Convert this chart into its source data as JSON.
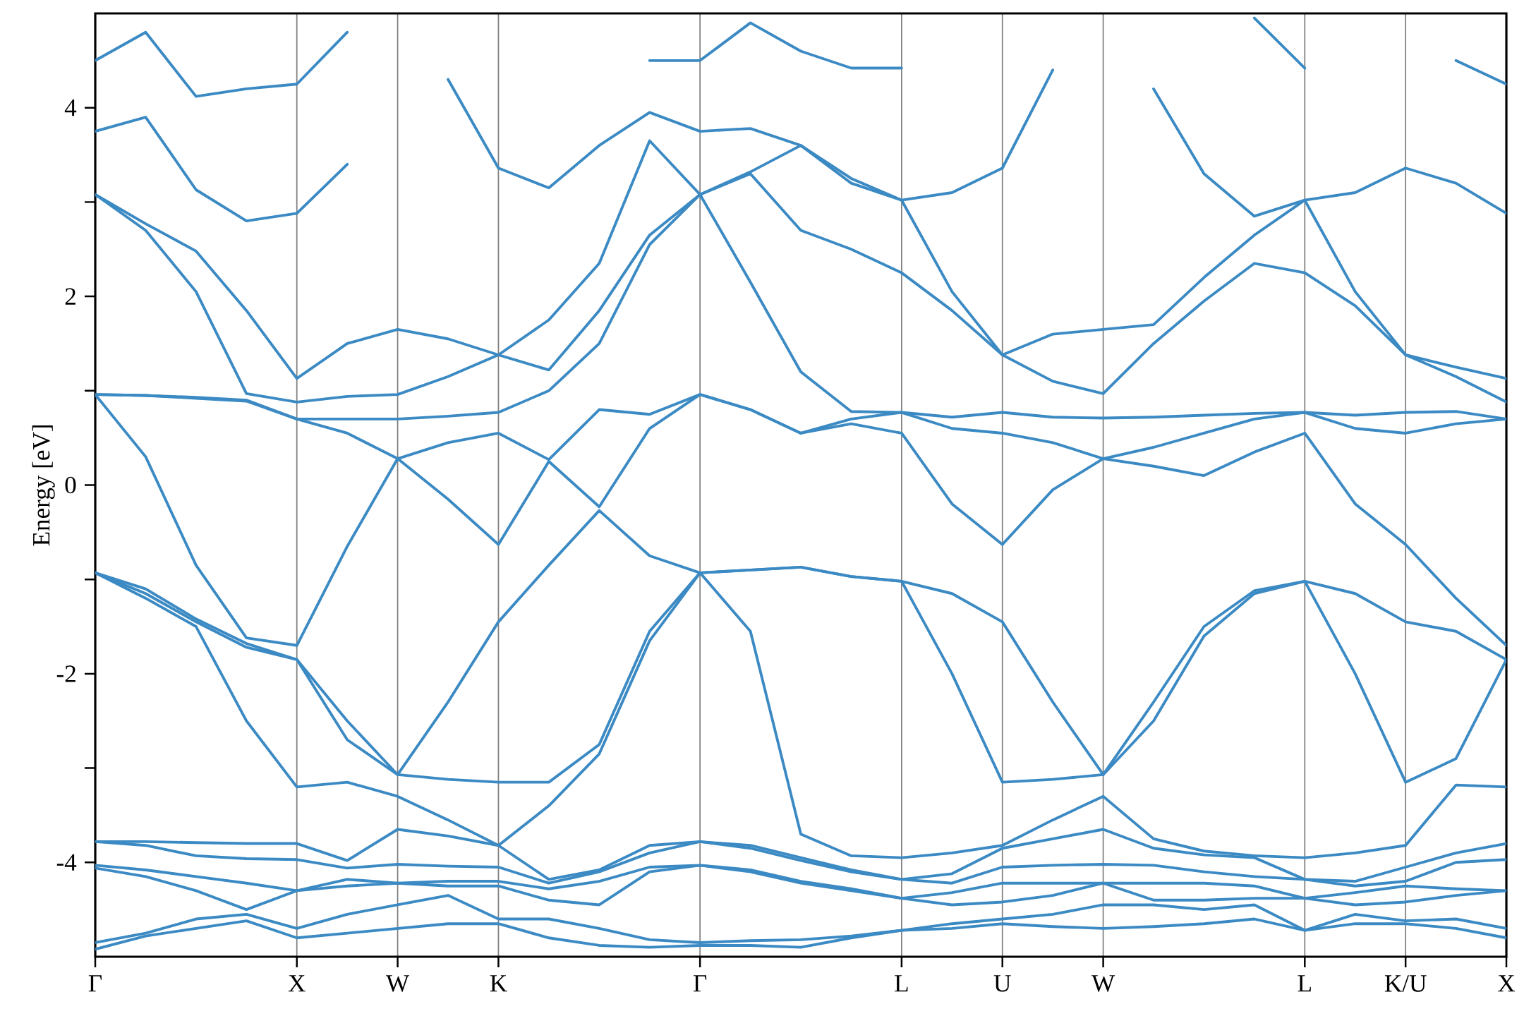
{
  "chart_data": {
    "type": "line",
    "ylabel": "Energy [eV]",
    "categories": [
      "Γ",
      null,
      null,
      null,
      "X",
      null,
      "W",
      null,
      "K",
      null,
      null,
      null,
      "Γ",
      null,
      null,
      null,
      "L",
      null,
      "U",
      null,
      "W",
      null,
      null,
      null,
      "L",
      null,
      "K/U",
      null,
      "X"
    ],
    "ylim": [
      -5,
      5
    ],
    "grid": "x",
    "yticks": [
      -4,
      {
        "value": -3,
        "label": null
      },
      -2,
      {
        "value": -1,
        "label": null
      },
      0,
      {
        "value": 1,
        "label": null
      },
      2,
      {
        "value": 3,
        "label": null
      },
      4
    ],
    "series": [
      {
        "color": "#3b8ac4",
        "values": [
          -4.92,
          -4.78,
          -4.7,
          -4.62,
          -4.8,
          -4.75,
          -4.7,
          -4.65,
          -4.65,
          -4.8,
          -4.88,
          -4.9,
          -4.88,
          -4.88,
          -4.9,
          -4.8,
          -4.72,
          -4.7,
          -4.65,
          -4.68,
          -4.7,
          -4.68,
          -4.65,
          -4.6,
          -4.72,
          -4.65,
          -4.65,
          -4.7,
          -4.8
        ]
      },
      {
        "color": "#3b8ac4",
        "values": [
          -4.85,
          -4.75,
          -4.6,
          -4.55,
          -4.7,
          -4.55,
          -4.45,
          -4.35,
          -4.6,
          -4.6,
          -4.7,
          -4.82,
          -4.85,
          -4.83,
          -4.82,
          -4.78,
          -4.72,
          -4.65,
          -4.6,
          -4.55,
          -4.45,
          -4.45,
          -4.5,
          -4.45,
          -4.72,
          -4.55,
          -4.62,
          -4.6,
          -4.7
        ]
      },
      {
        "color": "#3b8ac4",
        "values": [
          -4.06,
          -4.15,
          -4.3,
          -4.5,
          -4.3,
          -4.25,
          -4.22,
          -4.25,
          -4.25,
          -4.4,
          -4.45,
          -4.1,
          -4.03,
          -4.1,
          -4.22,
          -4.3,
          -4.38,
          -4.45,
          -4.42,
          -4.35,
          -4.22,
          -4.4,
          -4.4,
          -4.38,
          -4.38,
          -4.45,
          -4.42,
          -4.35,
          -4.3
        ]
      },
      {
        "color": "#3b8ac4",
        "values": [
          -4.03,
          -4.08,
          -4.15,
          -4.22,
          -4.3,
          -4.18,
          -4.22,
          -4.2,
          -4.2,
          -4.28,
          -4.2,
          -4.05,
          -4.03,
          -4.08,
          -4.2,
          -4.28,
          -4.38,
          -4.32,
          -4.22,
          -4.22,
          -4.22,
          -4.22,
          -4.22,
          -4.25,
          -4.38,
          -4.32,
          -4.25,
          -4.28,
          -4.3
        ]
      },
      {
        "color": "#3b8ac4",
        "values": [
          -3.78,
          -3.82,
          -3.93,
          -3.96,
          -3.97,
          -4.06,
          -4.02,
          -4.04,
          -4.05,
          -4.22,
          -4.1,
          -3.9,
          -3.78,
          -3.85,
          -3.98,
          -4.1,
          -4.18,
          -4.22,
          -4.05,
          -4.03,
          -4.02,
          -4.03,
          -4.1,
          -4.15,
          -4.18,
          -4.25,
          -4.2,
          -4.0,
          -3.97
        ]
      },
      {
        "color": "#3b8ac4",
        "values": [
          -3.78,
          -3.78,
          -3.79,
          -3.8,
          -3.8,
          -3.98,
          -3.65,
          -3.72,
          -3.82,
          -4.18,
          -4.08,
          -3.82,
          -3.78,
          -3.82,
          -3.95,
          -4.08,
          -4.18,
          -4.12,
          -3.85,
          -3.75,
          -3.65,
          -3.85,
          -3.92,
          -3.95,
          -4.18,
          -4.2,
          -4.05,
          -3.9,
          -3.8
        ]
      },
      {
        "color": "#3b8ac4",
        "values": [
          -0.93,
          -1.2,
          -1.5,
          -2.5,
          -3.2,
          -3.15,
          -3.3,
          -3.55,
          -3.82,
          -3.4,
          -2.85,
          -1.65,
          -0.93,
          -1.55,
          -3.7,
          -3.93,
          -3.95,
          -3.9,
          -3.82,
          -3.55,
          -3.3,
          -3.75,
          -3.88,
          -3.93,
          -3.95,
          -3.9,
          -3.82,
          -3.18,
          -3.2
        ]
      },
      {
        "color": "#3b8ac4",
        "values": [
          -0.93,
          -1.15,
          -1.45,
          -1.72,
          -1.85,
          -2.7,
          -3.07,
          -3.12,
          -3.15,
          -3.15,
          -2.75,
          -1.55,
          -0.93,
          -0.9,
          -0.87,
          -0.97,
          -1.02,
          -2.0,
          -3.15,
          -3.12,
          -3.07,
          -2.5,
          -1.6,
          -1.15,
          -1.02,
          -2.0,
          -3.15,
          -2.9,
          -1.85
        ]
      },
      {
        "color": "#3b8ac4",
        "values": [
          -0.93,
          -1.1,
          -1.42,
          -1.68,
          -1.85,
          -2.5,
          -3.07,
          -2.3,
          -1.45,
          -0.85,
          -0.27,
          -0.75,
          -0.93,
          -0.9,
          -0.87,
          -0.97,
          -1.02,
          -1.15,
          -1.45,
          -2.3,
          -3.07,
          -2.3,
          -1.5,
          -1.12,
          -1.02,
          -1.15,
          -1.45,
          -1.55,
          -1.85
        ]
      },
      {
        "color": "#3b8ac4",
        "values": [
          0.96,
          0.3,
          -0.85,
          -1.62,
          -1.7,
          -0.65,
          0.28,
          -0.15,
          -0.63,
          0.25,
          -0.23,
          0.6,
          0.96,
          0.8,
          0.55,
          0.65,
          0.55,
          -0.2,
          -0.63,
          -0.05,
          0.28,
          0.2,
          0.1,
          0.35,
          0.55,
          -0.2,
          -0.63,
          -1.2,
          -1.7
        ]
      },
      {
        "color": "#3b8ac4",
        "values": [
          0.96,
          0.95,
          0.93,
          0.9,
          0.7,
          0.55,
          0.28,
          0.45,
          0.55,
          0.27,
          0.8,
          0.75,
          0.96,
          0.8,
          0.55,
          0.7,
          0.77,
          0.6,
          0.55,
          0.45,
          0.28,
          0.4,
          0.55,
          0.7,
          0.77,
          0.6,
          0.55,
          0.65,
          0.7
        ]
      },
      {
        "color": "#3b8ac4",
        "values": [
          0.96,
          0.95,
          0.92,
          0.89,
          0.7,
          0.7,
          0.7,
          0.73,
          0.77,
          1.0,
          1.5,
          2.55,
          3.08,
          2.15,
          1.2,
          0.78,
          0.77,
          0.72,
          0.77,
          0.72,
          0.71,
          0.72,
          0.74,
          0.76,
          0.77,
          0.74,
          0.77,
          0.78,
          0.7
        ]
      },
      {
        "color": "#3b8ac4",
        "values": [
          3.08,
          2.7,
          2.05,
          0.97,
          0.88,
          0.94,
          0.96,
          1.15,
          1.38,
          1.22,
          1.85,
          2.65,
          3.08,
          3.3,
          2.7,
          2.5,
          2.25,
          1.85,
          1.38,
          1.1,
          0.97,
          1.5,
          1.95,
          2.35,
          2.25,
          1.9,
          1.38,
          1.15,
          0.88
        ]
      },
      {
        "color": "#3b8ac4",
        "values": [
          3.08,
          2.77,
          2.48,
          1.85,
          1.13,
          1.5,
          1.65,
          1.55,
          1.38,
          1.75,
          2.35,
          3.65,
          3.08,
          3.32,
          3.6,
          3.2,
          3.02,
          2.05,
          1.38,
          1.6,
          1.65,
          1.7,
          2.2,
          2.65,
          3.02,
          2.05,
          1.38,
          1.25,
          1.13
        ]
      },
      {
        "color": "#3b8ac4",
        "values": [
          3.75,
          3.9,
          3.13,
          2.8,
          2.88,
          3.4,
          null,
          4.3,
          3.36,
          3.15,
          3.6,
          3.95,
          3.75,
          3.78,
          3.6,
          3.25,
          3.02,
          3.1,
          3.36,
          4.4,
          null,
          4.2,
          3.3,
          2.85,
          3.02,
          3.1,
          3.36,
          3.2,
          2.88
        ]
      },
      {
        "color": "#3b8ac4",
        "values": [
          4.5,
          4.8,
          4.12,
          4.2,
          4.25,
          4.8,
          null,
          null,
          null,
          null,
          null,
          4.5,
          4.5,
          4.9,
          4.6,
          4.42,
          4.42,
          null,
          null,
          null,
          null,
          null,
          null,
          4.95,
          4.42,
          null,
          null,
          4.5,
          4.25
        ]
      }
    ]
  }
}
